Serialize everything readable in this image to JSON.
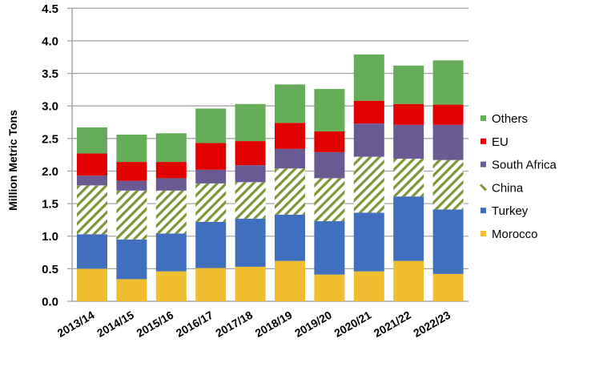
{
  "chart_data": {
    "type": "bar",
    "stacked": true,
    "title": "",
    "xlabel": "",
    "ylabel": "Million Metric Tons",
    "ylim": [
      0,
      4.5
    ],
    "ytick_step": 0.5,
    "yticks": [
      "0.0",
      "0.5",
      "1.0",
      "1.5",
      "2.0",
      "2.5",
      "3.0",
      "3.5",
      "4.0",
      "4.5"
    ],
    "grid": true,
    "legend_position": "right",
    "categories": [
      "2013/14",
      "2014/15",
      "2015/16",
      "2016/17",
      "2017/18",
      "2018/19",
      "2019/20",
      "2020/21",
      "2021/22",
      "2022/23"
    ],
    "series": [
      {
        "name": "Morocco",
        "color": "#f0bf30",
        "pattern": "solid",
        "values": [
          0.5,
          0.34,
          0.46,
          0.51,
          0.53,
          0.62,
          0.41,
          0.46,
          0.62,
          0.42
        ]
      },
      {
        "name": "Turkey",
        "color": "#3f6fbd",
        "pattern": "solid",
        "values": [
          0.53,
          0.61,
          0.58,
          0.71,
          0.74,
          0.71,
          0.82,
          0.9,
          0.99,
          0.99
        ]
      },
      {
        "name": "China",
        "color": "#7d9638",
        "pattern": "diagonal-stripes",
        "values": [
          0.75,
          0.75,
          0.66,
          0.59,
          0.56,
          0.71,
          0.66,
          0.86,
          0.58,
          0.76
        ]
      },
      {
        "name": "South Africa",
        "color": "#6a5a94",
        "pattern": "solid",
        "values": [
          0.15,
          0.15,
          0.19,
          0.21,
          0.26,
          0.3,
          0.4,
          0.51,
          0.52,
          0.54
        ]
      },
      {
        "name": "EU",
        "color": "#e00000",
        "pattern": "solid",
        "values": [
          0.34,
          0.29,
          0.25,
          0.41,
          0.37,
          0.4,
          0.32,
          0.35,
          0.32,
          0.31
        ]
      },
      {
        "name": "Others",
        "color": "#66ad5a",
        "pattern": "solid",
        "values": [
          0.4,
          0.42,
          0.44,
          0.53,
          0.57,
          0.59,
          0.65,
          0.71,
          0.59,
          0.68
        ]
      }
    ],
    "legend_order": [
      "Others",
      "EU",
      "South Africa",
      "China",
      "Turkey",
      "Morocco"
    ]
  }
}
